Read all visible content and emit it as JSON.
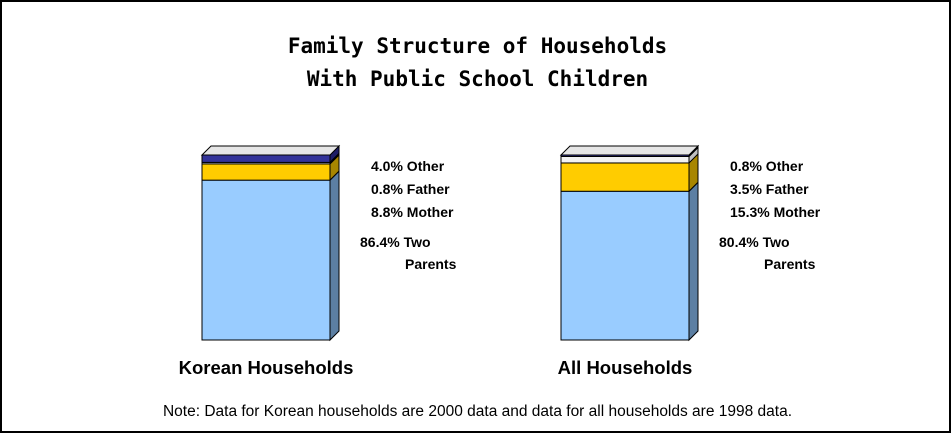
{
  "chart_data": {
    "type": "bar",
    "stacked": true,
    "title": [
      "Family Structure of Households",
      "With Public School Children"
    ],
    "categories": [
      "Korean Households",
      "All Households"
    ],
    "series": [
      {
        "name": "Two Parents",
        "values": [
          86.4,
          80.4
        ]
      },
      {
        "name": "Mother",
        "values": [
          8.8,
          15.3
        ]
      },
      {
        "name": "Father",
        "values": [
          0.8,
          3.5
        ]
      },
      {
        "name": "Other",
        "values": [
          4.0,
          0.8
        ]
      }
    ],
    "data_labels": [
      [
        "4.0% Other",
        "0.8% Father",
        "8.8% Mother",
        "86.4% Two",
        "Parents"
      ],
      [
        "0.8% Other",
        "3.5% Father",
        "15.3% Mother",
        "80.4% Two",
        "Parents"
      ]
    ],
    "ylim": [
      0,
      100
    ],
    "grid": false,
    "legend": "none",
    "colors": {
      "Two Parents": "#99CCFF",
      "Mother": "#FFCC00",
      "Father": "#F2F2F2",
      "Other": "#333399"
    },
    "side_colors": {
      "Two Parents": "#5C7FA3",
      "Mother": "#A88600",
      "Father": "#BFBFBF",
      "Other": "#1E1E66"
    },
    "note": "Note: Data for Korean households are 2000 data and data for all households are 1998 data."
  }
}
